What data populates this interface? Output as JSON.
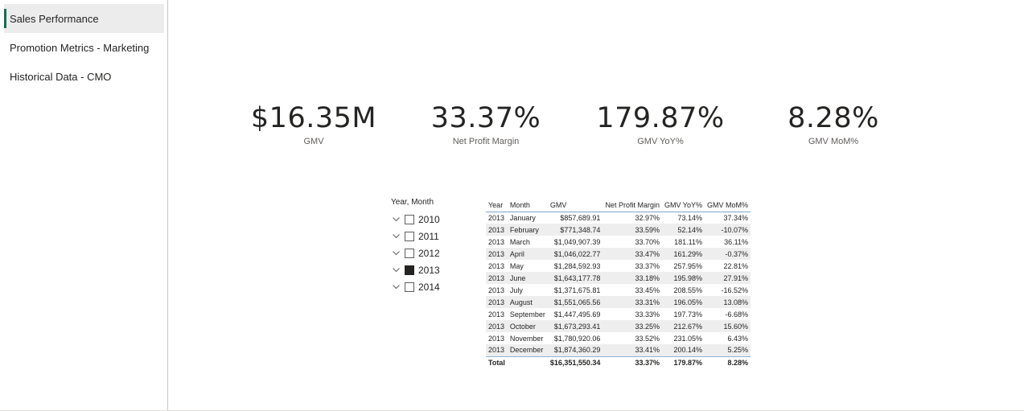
{
  "nav": {
    "items": [
      {
        "label": "Sales Performance",
        "active": true
      },
      {
        "label": "Promotion Metrics - Marketing",
        "active": false
      },
      {
        "label": "Historical Data - CMO",
        "active": false
      }
    ]
  },
  "kpis": [
    {
      "value": "$16.35M",
      "label": "GMV"
    },
    {
      "value": "33.37%",
      "label": "Net Profit Margin"
    },
    {
      "value": "179.87%",
      "label": "GMV YoY%"
    },
    {
      "value": "8.28%",
      "label": "GMV MoM%"
    }
  ],
  "slicer": {
    "title": "Year, Month",
    "items": [
      {
        "label": "2010",
        "checked": false
      },
      {
        "label": "2011",
        "checked": false
      },
      {
        "label": "2012",
        "checked": false
      },
      {
        "label": "2013",
        "checked": true
      },
      {
        "label": "2014",
        "checked": false
      }
    ]
  },
  "table": {
    "headers": [
      "Year",
      "Month",
      "GMV",
      "Net Profit Margin",
      "GMV YoY%",
      "GMV MoM%"
    ],
    "rows": [
      [
        "2013",
        "January",
        "$857,689.91",
        "32.97%",
        "73.14%",
        "37.34%"
      ],
      [
        "2013",
        "February",
        "$771,348.74",
        "33.59%",
        "52.14%",
        "-10.07%"
      ],
      [
        "2013",
        "March",
        "$1,049,907.39",
        "33.70%",
        "181.11%",
        "36.11%"
      ],
      [
        "2013",
        "April",
        "$1,046,022.77",
        "33.47%",
        "161.29%",
        "-0.37%"
      ],
      [
        "2013",
        "May",
        "$1,284,592.93",
        "33.37%",
        "257.95%",
        "22.81%"
      ],
      [
        "2013",
        "June",
        "$1,643,177.78",
        "33.18%",
        "195.98%",
        "27.91%"
      ],
      [
        "2013",
        "July",
        "$1,371,675.81",
        "33.45%",
        "208.55%",
        "-16.52%"
      ],
      [
        "2013",
        "August",
        "$1,551,065.56",
        "33.31%",
        "196.05%",
        "13.08%"
      ],
      [
        "2013",
        "September",
        "$1,447,495.69",
        "33.33%",
        "197.73%",
        "-6.68%"
      ],
      [
        "2013",
        "October",
        "$1,673,293.41",
        "33.25%",
        "212.67%",
        "15.60%"
      ],
      [
        "2013",
        "November",
        "$1,780,920.06",
        "33.52%",
        "231.05%",
        "6.43%"
      ],
      [
        "2013",
        "December",
        "$1,874,360.29",
        "33.41%",
        "200.14%",
        "5.25%"
      ]
    ],
    "total": [
      "Total",
      "",
      "$16,351,550.34",
      "33.37%",
      "179.87%",
      "8.28%"
    ]
  }
}
